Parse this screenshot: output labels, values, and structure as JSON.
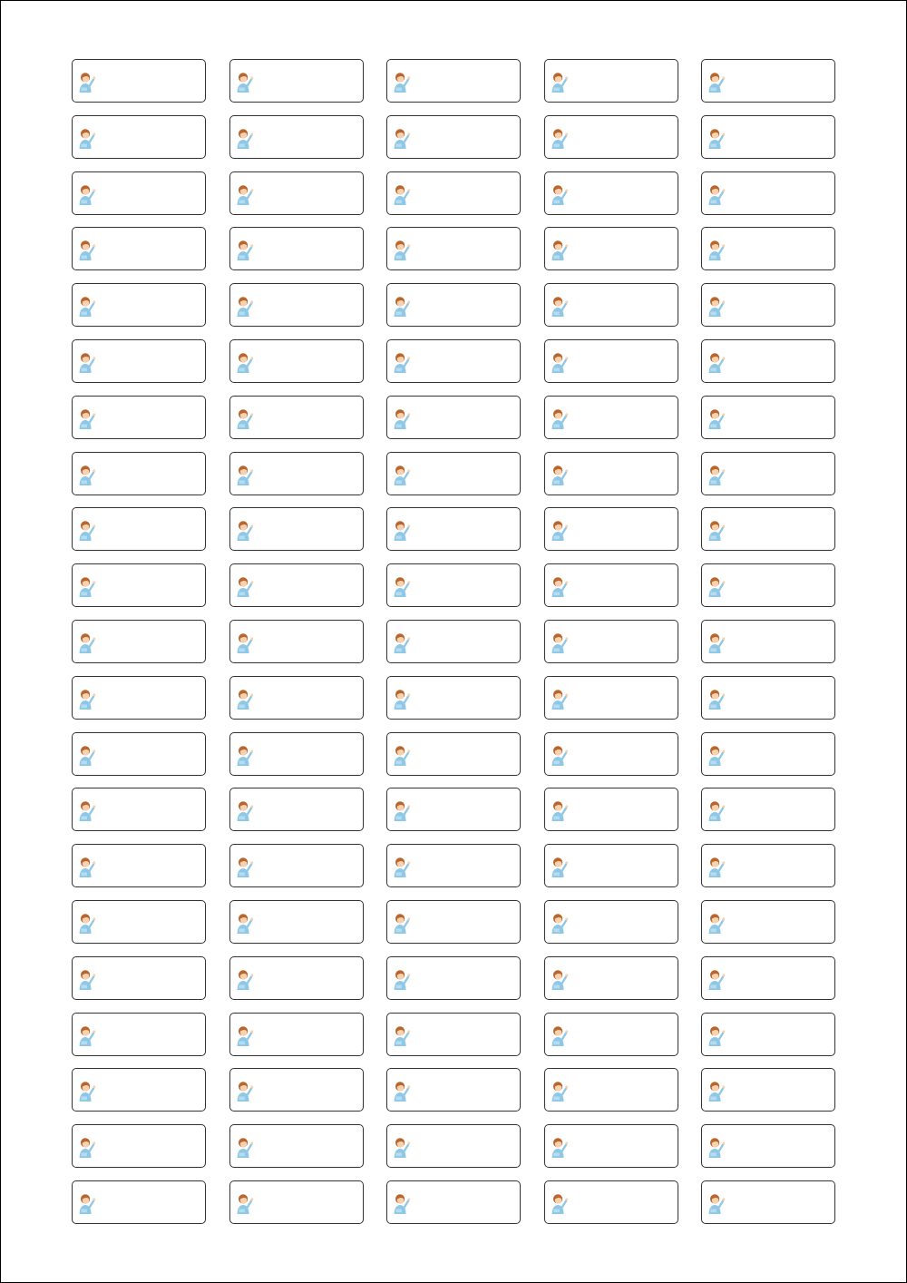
{
  "sheet": {
    "rows": 21,
    "columns": 5,
    "label_icon": "woman-pointing-icon",
    "colors": {
      "border": "#333333",
      "hair": "#b8662e",
      "skin": "#f6d2b0",
      "shirt": "#8fc8e6"
    }
  }
}
